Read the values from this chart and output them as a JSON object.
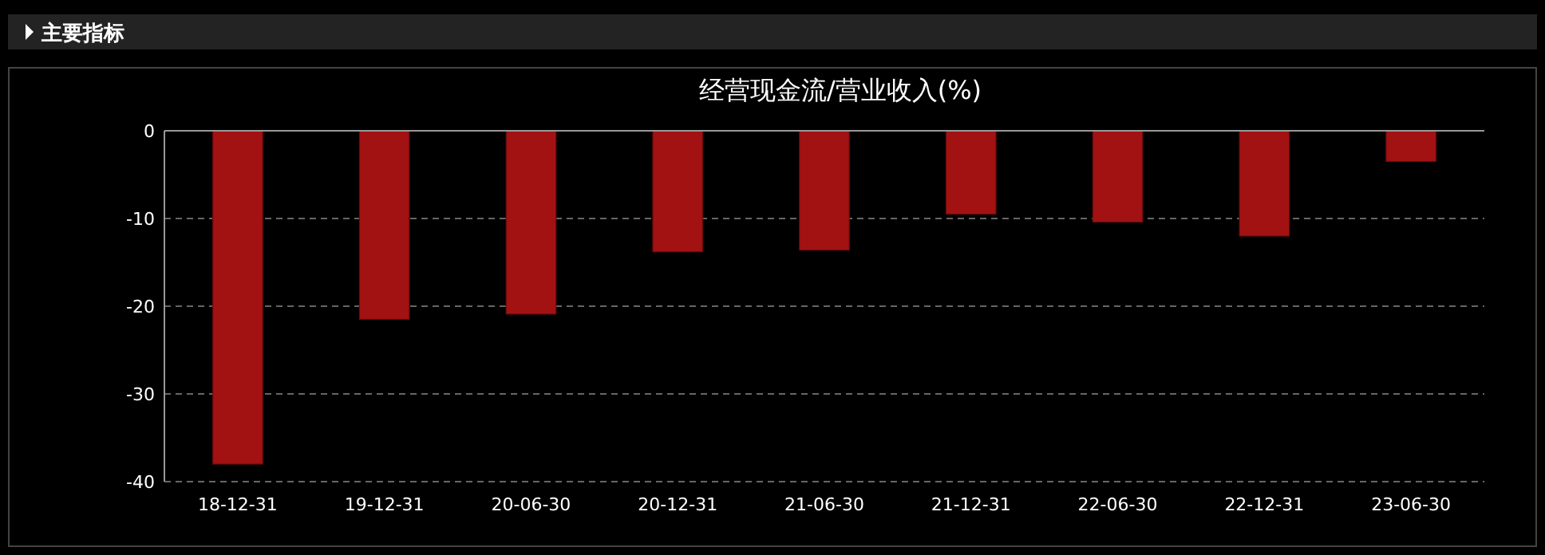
{
  "chart_data": {
    "type": "bar",
    "title": "经营现金流/营业收入(%)",
    "annotations": [
      "主要指标"
    ],
    "categories": [
      "18-12-31",
      "19-12-31",
      "20-06-30",
      "20-12-31",
      "21-06-30",
      "21-12-31",
      "22-06-30",
      "22-12-31",
      "23-06-30"
    ],
    "values": [
      -38.0,
      -21.5,
      -20.9,
      -13.8,
      -13.6,
      -9.5,
      -10.4,
      -12.0,
      -3.5
    ],
    "color": "#a31212",
    "ylim": [
      -40,
      0
    ],
    "yticks": [
      -40,
      -30,
      -20,
      -10,
      0
    ],
    "grid": "y"
  }
}
